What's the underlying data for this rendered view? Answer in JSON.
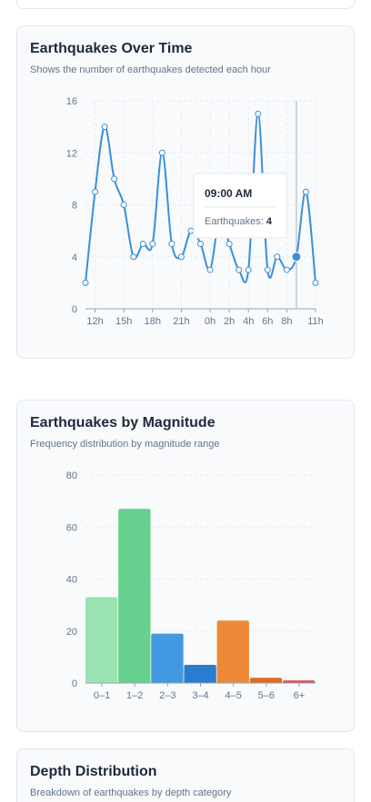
{
  "cards": [
    {
      "title": "Earthquakes Over Time",
      "subtitle": "Shows the number of earthquakes detected each hour",
      "tooltip": {
        "time": "09:00 AM",
        "label": "Earthquakes:",
        "value": "4"
      }
    },
    {
      "title": "Earthquakes by Magnitude",
      "subtitle": "Frequency distribution by magnitude range"
    },
    {
      "title": "Depth Distribution",
      "subtitle": "Breakdown of earthquakes by depth category"
    }
  ],
  "colors": {
    "line": "#3b8fd9",
    "active_point": "#3b8fd9",
    "bars": [
      "#9ae3b0",
      "#66d18f",
      "#4299e1",
      "#2b7bd0",
      "#ed8936",
      "#dd6b20",
      "#e05252"
    ]
  },
  "chart_data": [
    {
      "type": "line",
      "title": "",
      "xlabel": "",
      "ylabel": "",
      "ylim": [
        0,
        16
      ],
      "yticks": [
        0,
        4,
        8,
        12,
        16
      ],
      "xtick_labels": [
        "12h",
        "15h",
        "18h",
        "21h",
        "0h",
        "2h",
        "4h",
        "6h",
        "8h",
        "11h"
      ],
      "xtick_index": [
        1,
        4,
        7,
        10,
        13,
        15,
        17,
        19,
        21,
        24
      ],
      "grid": true,
      "active_index": 22,
      "series": [
        {
          "values": [
            2,
            9,
            14,
            10,
            8,
            4,
            5,
            5,
            12,
            5,
            4,
            6,
            5,
            3,
            7,
            5,
            3,
            3,
            15,
            3,
            4,
            3,
            4,
            9,
            2
          ]
        }
      ]
    },
    {
      "type": "bar",
      "title": "",
      "xlabel": "",
      "ylabel": "",
      "ylim": [
        0,
        80
      ],
      "yticks": [
        0,
        20,
        40,
        60,
        80
      ],
      "categories": [
        "0–1",
        "1–2",
        "2–3",
        "3–4",
        "4–5",
        "5–6",
        "6+"
      ],
      "values": [
        33,
        67,
        19,
        7,
        24,
        2,
        1
      ],
      "grid": true
    }
  ]
}
